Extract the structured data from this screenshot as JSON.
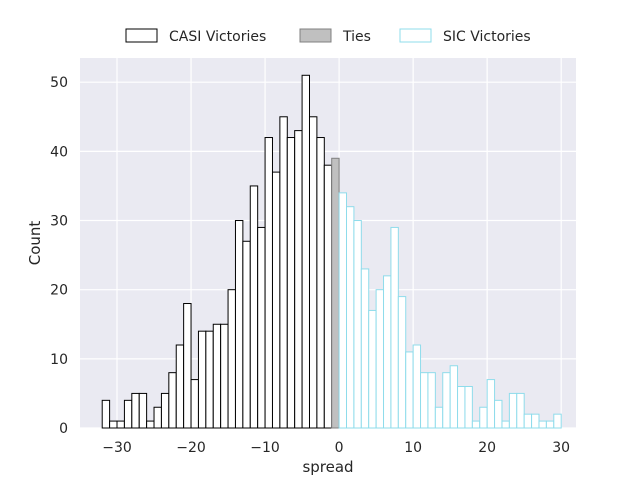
{
  "chart_data": {
    "type": "bar",
    "subtype": "histogram",
    "xlabel": "spread",
    "ylabel": "Count",
    "xlim": [
      -35,
      32
    ],
    "ylim": [
      0,
      53.5
    ],
    "xticks": [
      -30,
      -20,
      -10,
      0,
      10,
      20,
      30
    ],
    "xtick_labels": [
      "−30",
      "−20",
      "−10",
      "0",
      "10",
      "20",
      "30"
    ],
    "yticks": [
      0,
      10,
      20,
      30,
      40,
      50
    ],
    "ytick_labels": [
      "0",
      "10",
      "20",
      "30",
      "40",
      "50"
    ],
    "grid": true,
    "background": "#eaeaf2",
    "legend_position": "top-center",
    "bin_width": 1,
    "series": [
      {
        "name": "CASI Victories",
        "fill": "#ffffff",
        "edge": "#000000",
        "bins": [
          {
            "x": -32,
            "count": 4
          },
          {
            "x": -31,
            "count": 1
          },
          {
            "x": -30,
            "count": 1
          },
          {
            "x": -29,
            "count": 4
          },
          {
            "x": -28,
            "count": 5
          },
          {
            "x": -27,
            "count": 5
          },
          {
            "x": -26,
            "count": 1
          },
          {
            "x": -25,
            "count": 3
          },
          {
            "x": -24,
            "count": 5
          },
          {
            "x": -23,
            "count": 8
          },
          {
            "x": -22,
            "count": 12
          },
          {
            "x": -21,
            "count": 18
          },
          {
            "x": -20,
            "count": 7
          },
          {
            "x": -19,
            "count": 14
          },
          {
            "x": -18,
            "count": 14
          },
          {
            "x": -17,
            "count": 15
          },
          {
            "x": -16,
            "count": 15
          },
          {
            "x": -15,
            "count": 20
          },
          {
            "x": -14,
            "count": 30
          },
          {
            "x": -13,
            "count": 27
          },
          {
            "x": -12,
            "count": 35
          },
          {
            "x": -11,
            "count": 29
          },
          {
            "x": -10,
            "count": 42
          },
          {
            "x": -9,
            "count": 37
          },
          {
            "x": -8,
            "count": 45
          },
          {
            "x": -7,
            "count": 42
          },
          {
            "x": -6,
            "count": 43
          },
          {
            "x": -5,
            "count": 51
          },
          {
            "x": -4,
            "count": 45
          },
          {
            "x": -3,
            "count": 42
          },
          {
            "x": -2,
            "count": 38
          }
        ]
      },
      {
        "name": "Ties",
        "fill": "#c0c0c0",
        "edge": "#808080",
        "bins": [
          {
            "x": -1,
            "count": 39
          }
        ]
      },
      {
        "name": "SIC Victories",
        "fill": "#ffffff",
        "edge": "#8fdceb",
        "bins": [
          {
            "x": 0,
            "count": 34
          },
          {
            "x": 1,
            "count": 32
          },
          {
            "x": 2,
            "count": 30
          },
          {
            "x": 3,
            "count": 23
          },
          {
            "x": 4,
            "count": 17
          },
          {
            "x": 5,
            "count": 20
          },
          {
            "x": 6,
            "count": 22
          },
          {
            "x": 7,
            "count": 29
          },
          {
            "x": 8,
            "count": 19
          },
          {
            "x": 9,
            "count": 11
          },
          {
            "x": 10,
            "count": 12
          },
          {
            "x": 11,
            "count": 8
          },
          {
            "x": 12,
            "count": 8
          },
          {
            "x": 13,
            "count": 3
          },
          {
            "x": 14,
            "count": 8
          },
          {
            "x": 15,
            "count": 9
          },
          {
            "x": 16,
            "count": 6
          },
          {
            "x": 17,
            "count": 6
          },
          {
            "x": 18,
            "count": 1
          },
          {
            "x": 19,
            "count": 3
          },
          {
            "x": 20,
            "count": 7
          },
          {
            "x": 21,
            "count": 4
          },
          {
            "x": 22,
            "count": 1
          },
          {
            "x": 23,
            "count": 5
          },
          {
            "x": 24,
            "count": 5
          },
          {
            "x": 25,
            "count": 2
          },
          {
            "x": 26,
            "count": 2
          },
          {
            "x": 27,
            "count": 1
          },
          {
            "x": 28,
            "count": 1
          },
          {
            "x": 29,
            "count": 2
          }
        ]
      }
    ]
  }
}
